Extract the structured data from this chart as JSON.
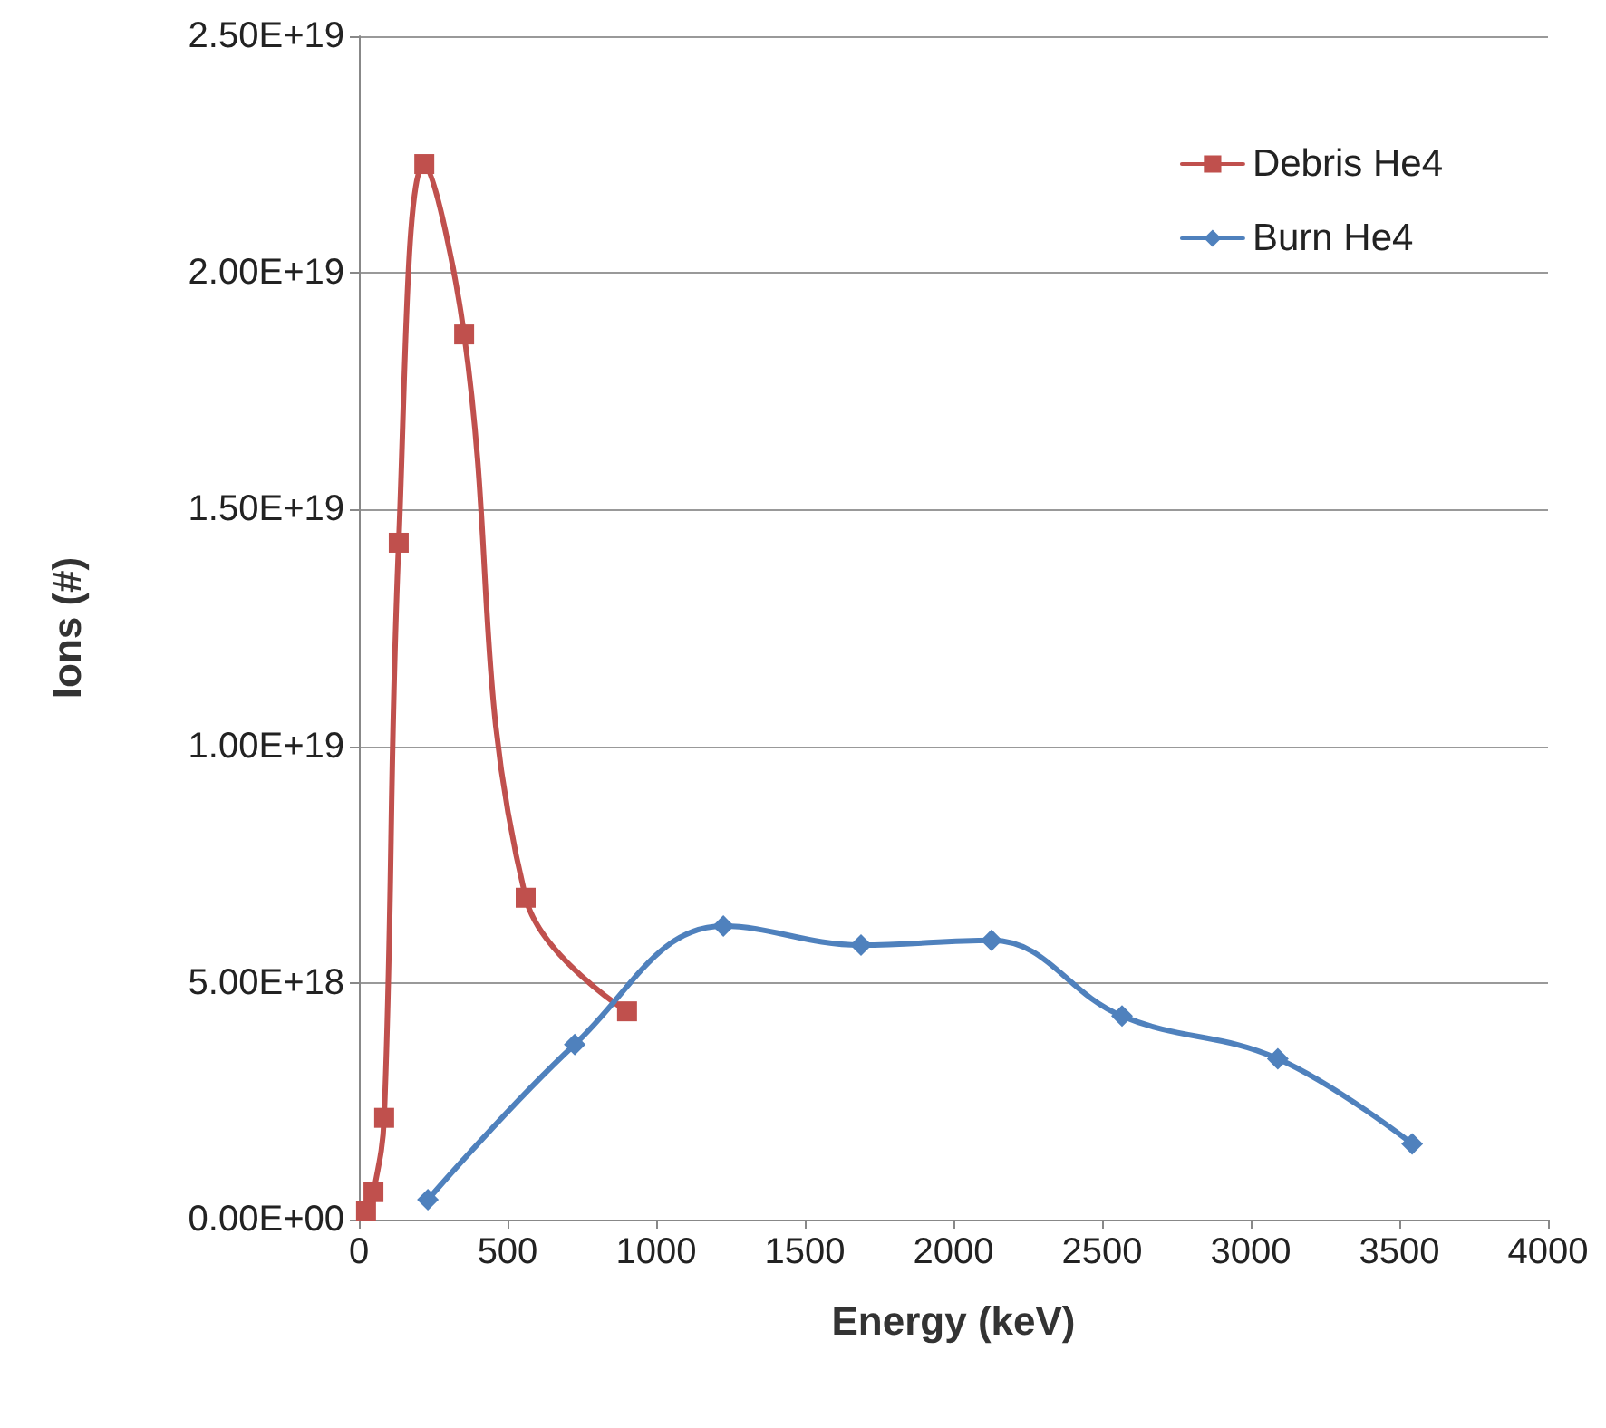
{
  "chart_data": {
    "type": "line",
    "xlabel": "Energy (keV)",
    "ylabel": "Ions (#)",
    "xlim": [
      0,
      4000
    ],
    "xticks": [
      0,
      500,
      1000,
      1500,
      2000,
      2500,
      3000,
      3500,
      4000
    ],
    "ylim": [
      0,
      2.5e+19
    ],
    "yticks": [
      {
        "value": 0,
        "label": "0.00E+00"
      },
      {
        "value": 5e+18,
        "label": "5.00E+18"
      },
      {
        "value": 1e+19,
        "label": "1.00E+19"
      },
      {
        "value": 1.5e+19,
        "label": "1.50E+19"
      },
      {
        "value": 2e+19,
        "label": "2.00E+19"
      },
      {
        "value": 2.5e+19,
        "label": "2.50E+19"
      }
    ],
    "grid": "y",
    "legend": "top right",
    "line_style": "solid",
    "series": [
      {
        "name": "Debris He4",
        "color": "#c0504d",
        "marker": "square",
        "x": [
          24,
          49,
          85,
          134,
          220,
          354,
          561,
          902
        ],
        "values": [
          1.9e+17,
          5.8e+17,
          2.15e+18,
          1.43e+19,
          2.23e+19,
          1.87e+19,
          6.8e+18,
          4.4e+18
        ]
      },
      {
        "name": "Burn He4",
        "color": "#4f81bd",
        "marker": "diamond",
        "x": [
          232,
          726,
          1226,
          1689,
          2128,
          2567,
          3091,
          3543
        ],
        "values": [
          4.2e+17,
          3.7e+18,
          6.2e+18,
          5.8e+18,
          5.9e+18,
          4.3e+18,
          3.4e+18,
          1.6e+18
        ]
      }
    ]
  }
}
